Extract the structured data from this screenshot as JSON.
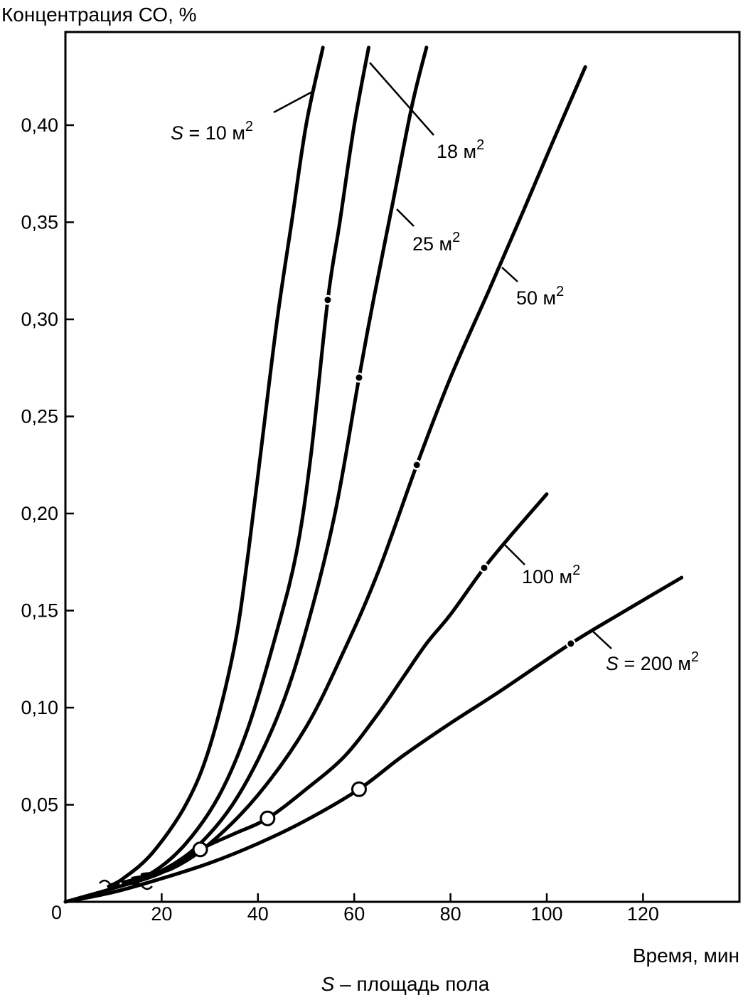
{
  "chart_data": {
    "type": "line",
    "title": "Концентрация СО, %",
    "xlabel": "Время, мин",
    "ylabel": "",
    "caption_var": "S",
    "caption_rest": " – площадь пола",
    "origin_label": "0",
    "xlim": [
      0,
      140
    ],
    "ylim": [
      0,
      0.44
    ],
    "x_ticks": [
      20,
      40,
      60,
      80,
      100,
      120
    ],
    "y_ticks": [
      0.05,
      0.1,
      0.15,
      0.2,
      0.25,
      0.3,
      0.35,
      0.4
    ],
    "x_tick_labels": [
      "20",
      "40",
      "60",
      "80",
      "100",
      "120"
    ],
    "y_tick_labels": [
      "0,05",
      "0,10",
      "0,15",
      "0,20",
      "0,25",
      "0,30",
      "0,35",
      "0,40"
    ],
    "grid": false,
    "legend": "inline labels",
    "series": [
      {
        "label_prefix": "S",
        "label_value": "= 10 м",
        "label_sup": "2",
        "x": [
          9,
          12,
          18,
          25,
          30,
          35,
          38,
          41,
          44,
          47,
          50,
          53.5
        ],
        "y": [
          0.008,
          0.012,
          0.025,
          0.05,
          0.08,
          0.13,
          0.18,
          0.24,
          0.3,
          0.35,
          0.4,
          0.44
        ],
        "marked_points": []
      },
      {
        "label_prefix": "",
        "label_value": "18 м",
        "label_sup": "2",
        "x": [
          12,
          18,
          25,
          32,
          38,
          44,
          48,
          51,
          54.5,
          57,
          60,
          63
        ],
        "y": [
          0.01,
          0.015,
          0.03,
          0.055,
          0.09,
          0.14,
          0.18,
          0.23,
          0.31,
          0.35,
          0.4,
          0.44
        ],
        "marked_points": [
          [
            54.5,
            0.31
          ]
        ]
      },
      {
        "label_prefix": "",
        "label_value": "25 м",
        "label_sup": "2",
        "x": [
          14,
          20,
          28,
          36,
          44,
          50,
          56,
          61,
          64,
          68,
          72,
          75
        ],
        "y": [
          0.012,
          0.016,
          0.03,
          0.055,
          0.095,
          0.14,
          0.2,
          0.27,
          0.31,
          0.36,
          0.41,
          0.44
        ],
        "marked_points": [
          [
            61,
            0.27
          ]
        ]
      },
      {
        "label_prefix": "",
        "label_value": "50 м",
        "label_sup": "2",
        "x": [
          16,
          22,
          30,
          40,
          50,
          58,
          65,
          73,
          80,
          88,
          95,
          101,
          108
        ],
        "y": [
          0.014,
          0.017,
          0.03,
          0.055,
          0.09,
          0.13,
          0.17,
          0.225,
          0.27,
          0.315,
          0.355,
          0.39,
          0.43
        ],
        "marked_points": [
          [
            73,
            0.225
          ]
        ]
      },
      {
        "label_prefix": "",
        "label_value": "100 м",
        "label_sup": "2",
        "x": [
          0,
          10,
          20,
          28,
          35,
          42,
          50,
          58,
          65,
          70,
          75,
          80,
          87,
          93,
          100
        ],
        "y": [
          0,
          0.007,
          0.015,
          0.027,
          0.035,
          0.043,
          0.058,
          0.075,
          0.097,
          0.115,
          0.133,
          0.148,
          0.172,
          0.19,
          0.21
        ],
        "marked_points": [
          [
            87,
            0.172
          ]
        ],
        "open_points": [
          [
            28,
            0.027
          ],
          [
            42,
            0.043
          ]
        ]
      },
      {
        "label_prefix": "S",
        "label_value": "= 200 м",
        "label_sup": "2",
        "x": [
          0,
          10,
          20,
          30,
          40,
          50,
          61,
          70,
          80,
          90,
          105,
          115,
          128
        ],
        "y": [
          0,
          0.005,
          0.012,
          0.02,
          0.03,
          0.042,
          0.058,
          0.075,
          0.092,
          0.108,
          0.133,
          0.148,
          0.167
        ],
        "marked_points": [
          [
            105,
            0.133
          ]
        ],
        "open_points": [
          [
            61,
            0.058
          ]
        ]
      }
    ]
  }
}
